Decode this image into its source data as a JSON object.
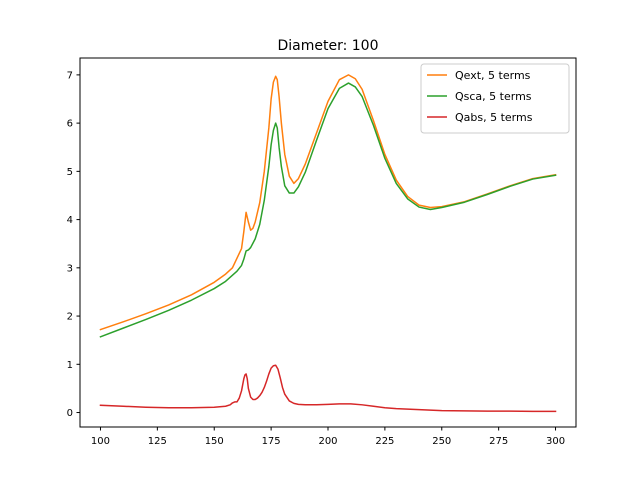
{
  "chart_data": {
    "type": "line",
    "title": "Diameter: 100",
    "xlabel": "",
    "ylabel": "",
    "xlim": [
      91,
      309
    ],
    "ylim": [
      -0.3,
      7.35
    ],
    "xticks": [
      100,
      125,
      150,
      175,
      200,
      225,
      250,
      275,
      300
    ],
    "yticks": [
      0,
      1,
      2,
      3,
      4,
      5,
      6,
      7
    ],
    "grid": false,
    "legend_position": "top-right",
    "series": [
      {
        "name": "Qext, 5 terms",
        "color": "#ff7f0e",
        "x": [
          100,
          110,
          120,
          130,
          140,
          150,
          155,
          158,
          160,
          162,
          163,
          164,
          165,
          166,
          167,
          168,
          170,
          172,
          174,
          175,
          176,
          177,
          177.7,
          178.5,
          179.5,
          181,
          183,
          185,
          187,
          190,
          195,
          200,
          205,
          209,
          212,
          215,
          220,
          225,
          230,
          235,
          240,
          245,
          250,
          260,
          270,
          280,
          290,
          300
        ],
        "y": [
          1.72,
          1.88,
          2.05,
          2.23,
          2.44,
          2.7,
          2.87,
          3.0,
          3.2,
          3.4,
          3.75,
          4.15,
          3.95,
          3.78,
          3.82,
          3.95,
          4.35,
          5.0,
          5.9,
          6.5,
          6.85,
          6.97,
          6.9,
          6.55,
          6.0,
          5.35,
          4.9,
          4.75,
          4.85,
          5.15,
          5.8,
          6.45,
          6.9,
          7.0,
          6.92,
          6.7,
          6.05,
          5.35,
          4.82,
          4.48,
          4.3,
          4.25,
          4.27,
          4.37,
          4.53,
          4.7,
          4.85,
          4.93
        ]
      },
      {
        "name": "Qsca, 5 terms",
        "color": "#2ca02c",
        "x": [
          100,
          110,
          120,
          130,
          140,
          150,
          155,
          160,
          162,
          163,
          164,
          165,
          166,
          168,
          170,
          172,
          174,
          175,
          176,
          177,
          177.7,
          178.5,
          179.5,
          181,
          183,
          185,
          187,
          190,
          195,
          200,
          205,
          209,
          212,
          215,
          220,
          225,
          230,
          235,
          240,
          245,
          250,
          260,
          270,
          280,
          290,
          300
        ],
        "y": [
          1.57,
          1.75,
          1.93,
          2.12,
          2.33,
          2.57,
          2.72,
          2.93,
          3.05,
          3.18,
          3.35,
          3.37,
          3.42,
          3.6,
          3.9,
          4.4,
          5.1,
          5.55,
          5.85,
          6.0,
          5.9,
          5.5,
          5.1,
          4.7,
          4.55,
          4.55,
          4.68,
          4.98,
          5.65,
          6.3,
          6.72,
          6.83,
          6.75,
          6.55,
          5.95,
          5.27,
          4.75,
          4.43,
          4.26,
          4.21,
          4.25,
          4.36,
          4.52,
          4.69,
          4.84,
          4.92
        ]
      },
      {
        "name": "Qabs, 5 terms",
        "color": "#d62728",
        "x": [
          100,
          110,
          120,
          130,
          140,
          150,
          155,
          157,
          158,
          159,
          160,
          161,
          162,
          163,
          163.5,
          164,
          164.5,
          165,
          166,
          167,
          168,
          169,
          170,
          171,
          172,
          173,
          174,
          175,
          176,
          177,
          178,
          179,
          180,
          181,
          183,
          185,
          187,
          190,
          195,
          200,
          205,
          210,
          215,
          220,
          225,
          230,
          240,
          250,
          260,
          270,
          280,
          290,
          300
        ],
        "y": [
          0.15,
          0.13,
          0.11,
          0.1,
          0.1,
          0.11,
          0.13,
          0.16,
          0.2,
          0.22,
          0.22,
          0.3,
          0.45,
          0.7,
          0.78,
          0.8,
          0.7,
          0.5,
          0.32,
          0.27,
          0.27,
          0.3,
          0.35,
          0.42,
          0.52,
          0.65,
          0.8,
          0.92,
          0.97,
          0.98,
          0.9,
          0.72,
          0.52,
          0.38,
          0.24,
          0.19,
          0.17,
          0.16,
          0.16,
          0.17,
          0.18,
          0.18,
          0.16,
          0.13,
          0.1,
          0.08,
          0.06,
          0.04,
          0.035,
          0.03,
          0.03,
          0.025,
          0.025
        ]
      }
    ]
  }
}
